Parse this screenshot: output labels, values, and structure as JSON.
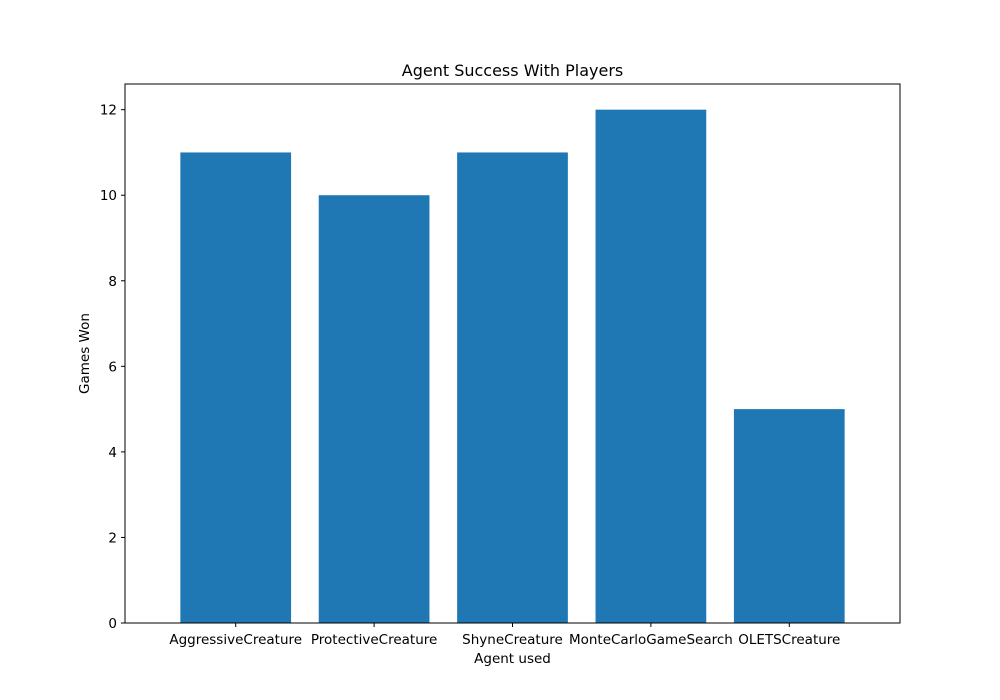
{
  "chart_data": {
    "type": "bar",
    "title": "Agent Success With Players",
    "xlabel": "Agent used",
    "ylabel": "Games Won",
    "categories": [
      "AggressiveCreature",
      "ProtectiveCreature",
      "ShyneCreature",
      "MonteCarloGameSearch",
      "OLETSCreature"
    ],
    "values": [
      11,
      10,
      11,
      12,
      5
    ],
    "ylim": [
      0,
      12.6
    ],
    "yticks": [
      0,
      2,
      4,
      6,
      8,
      10,
      12
    ],
    "grid": false,
    "bar_color": "#1f77b4"
  }
}
